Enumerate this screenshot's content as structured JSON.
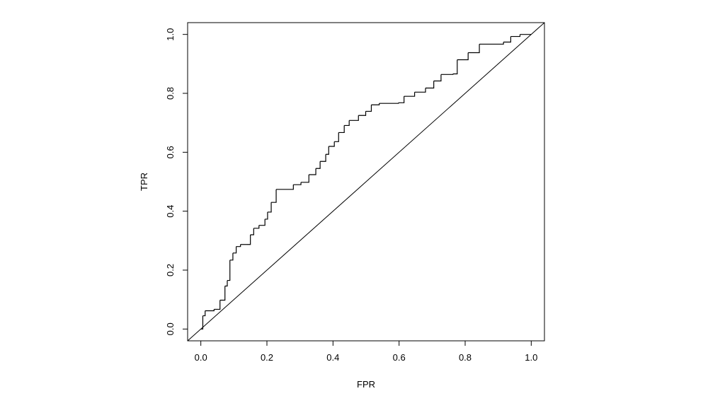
{
  "chart_data": {
    "type": "line",
    "step": true,
    "color": "#000000",
    "x_label": "FPR",
    "y_label": "TPR",
    "xlim": [
      -0.04,
      1.04
    ],
    "ylim": [
      -0.04,
      1.04
    ],
    "xticks": [
      {
        "value": 0,
        "label": "0.0"
      },
      0.2,
      0.4,
      0.6,
      0.8,
      {
        "value": 1,
        "label": "1.0"
      }
    ],
    "yticks": [
      {
        "value": 0,
        "label": "0.0"
      },
      0.2,
      0.4,
      0.6,
      0.8,
      {
        "value": 1,
        "label": "1.0"
      }
    ],
    "reference_line": {
      "intercept": 0,
      "slope": 1
    },
    "x": [
      0,
      0.006,
      0.013,
      0.04,
      0.058,
      0.073,
      0.08,
      0.088,
      0.097,
      0.107,
      0.12,
      0.14,
      0.15,
      0.16,
      0.176,
      0.194,
      0.202,
      0.213,
      0.228,
      0.275,
      0.28,
      0.303,
      0.327,
      0.348,
      0.361,
      0.378,
      0.387,
      0.404,
      0.417,
      0.434,
      0.449,
      0.477,
      0.499,
      0.516,
      0.54,
      0.598,
      0.615,
      0.647,
      0.68,
      0.705,
      0.727,
      0.763,
      0.776,
      0.809,
      0.843,
      0.916,
      0.938,
      0.966,
      1
    ],
    "y": [
      0,
      0.045,
      0.062,
      0.067,
      0.098,
      0.146,
      0.165,
      0.234,
      0.258,
      0.28,
      0.287,
      0.287,
      0.32,
      0.342,
      0.352,
      0.373,
      0.397,
      0.43,
      0.474,
      0.474,
      0.49,
      0.498,
      0.524,
      0.545,
      0.569,
      0.593,
      0.62,
      0.636,
      0.667,
      0.691,
      0.708,
      0.725,
      0.739,
      0.761,
      0.766,
      0.768,
      0.79,
      0.804,
      0.818,
      0.842,
      0.864,
      0.866,
      0.914,
      0.938,
      0.967,
      0.974,
      0.993,
      1,
      1
    ]
  }
}
